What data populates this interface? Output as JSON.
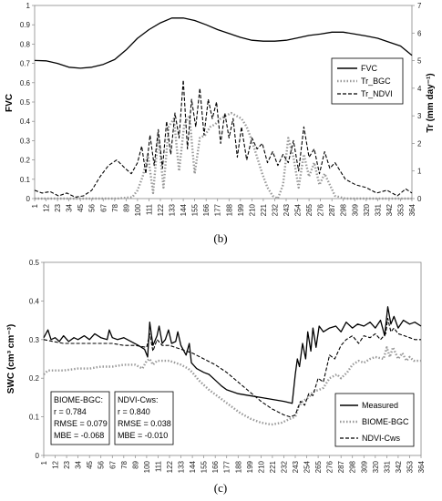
{
  "chart_data": [
    {
      "type": "line",
      "panel_label": "(b)",
      "ylabel_left": "FVC",
      "ylabel_right": "Tr (mm day⁻¹)",
      "ylim_left": [
        0,
        1
      ],
      "ylim_right": [
        0,
        7
      ],
      "yticks_left": [
        "0",
        "0.1",
        "0.2",
        "0.3",
        "0.4",
        "0.5",
        "0.6",
        "0.7",
        "0.8",
        "0.9",
        "1"
      ],
      "yticks_right": [
        "0",
        "1",
        "2",
        "3",
        "4",
        "5",
        "6",
        "7"
      ],
      "xticks": [
        "1",
        "12",
        "23",
        "34",
        "45",
        "56",
        "67",
        "78",
        "89",
        "100",
        "111",
        "122",
        "133",
        "144",
        "155",
        "166",
        "177",
        "188",
        "199",
        "210",
        "221",
        "232",
        "243",
        "254",
        "265",
        "276",
        "287",
        "298",
        "309",
        "320",
        "331",
        "342",
        "353",
        "364"
      ],
      "legend": [
        "FVC",
        "Tr_BGC",
        "Tr_NDVI"
      ],
      "legend_position": "right-middle",
      "series": [
        {
          "name": "FVC",
          "axis": "left",
          "style": "solid",
          "x": [
            1,
            12,
            23,
            34,
            45,
            56,
            67,
            78,
            89,
            100,
            111,
            122,
            133,
            144,
            155,
            166,
            177,
            188,
            199,
            210,
            221,
            232,
            243,
            254,
            265,
            276,
            287,
            298,
            309,
            320,
            331,
            342,
            353,
            364
          ],
          "y": [
            0.715,
            0.713,
            0.7,
            0.68,
            0.675,
            0.68,
            0.695,
            0.72,
            0.77,
            0.83,
            0.875,
            0.91,
            0.935,
            0.935,
            0.922,
            0.9,
            0.875,
            0.855,
            0.835,
            0.82,
            0.815,
            0.815,
            0.82,
            0.832,
            0.845,
            0.852,
            0.862,
            0.862,
            0.852,
            0.842,
            0.83,
            0.81,
            0.79,
            0.742
          ]
        },
        {
          "name": "Tr_BGC",
          "axis": "right",
          "style": "dotted",
          "x": [
            1,
            20,
            40,
            60,
            80,
            95,
            100,
            105,
            110,
            115,
            120,
            125,
            130,
            135,
            140,
            145,
            150,
            155,
            160,
            165,
            170,
            175,
            180,
            185,
            190,
            195,
            200,
            205,
            210,
            215,
            220,
            225,
            230,
            235,
            240,
            245,
            250,
            255,
            260,
            265,
            270,
            275,
            280,
            290,
            300,
            320,
            340,
            364
          ],
          "y": [
            0,
            0,
            0,
            0,
            0,
            0.05,
            0.3,
            0.8,
            1.6,
            0.2,
            2.3,
            0.4,
            2.6,
            2.9,
            1.0,
            2.7,
            3.0,
            0.9,
            2.2,
            2.3,
            2.6,
            2.7,
            2.9,
            3.0,
            3.1,
            3.0,
            2.9,
            2.6,
            2.1,
            1.5,
            0.9,
            0.4,
            0.1,
            0,
            0.5,
            2.2,
            1.5,
            0.4,
            1.6,
            0.8,
            1.3,
            0.5,
            0.9,
            0.1,
            0,
            0,
            0,
            0
          ]
        },
        {
          "name": "Tr_NDVI",
          "axis": "right",
          "style": "dashed",
          "x": [
            1,
            8,
            16,
            24,
            32,
            40,
            48,
            56,
            64,
            72,
            80,
            88,
            94,
            100,
            104,
            108,
            112,
            116,
            120,
            124,
            128,
            132,
            136,
            140,
            144,
            148,
            152,
            156,
            160,
            164,
            168,
            172,
            176,
            180,
            184,
            188,
            192,
            196,
            200,
            205,
            210,
            215,
            220,
            225,
            230,
            235,
            240,
            245,
            250,
            255,
            260,
            265,
            270,
            275,
            280,
            285,
            290,
            300,
            310,
            320,
            330,
            340,
            350,
            358,
            364
          ],
          "y": [
            0.3,
            0.2,
            0.25,
            0.1,
            0.2,
            0.05,
            0.1,
            0.3,
            0.8,
            1.2,
            1.4,
            1.1,
            0.9,
            1.3,
            1.9,
            0.9,
            2.3,
            1.2,
            2.5,
            1.1,
            2.8,
            1.6,
            3.1,
            2.2,
            4.3,
            1.8,
            3.6,
            2.6,
            4.0,
            2.3,
            3.6,
            2.9,
            3.5,
            2.0,
            3.1,
            2.2,
            2.9,
            1.5,
            2.6,
            1.4,
            2.2,
            1.8,
            2.0,
            1.3,
            1.7,
            1.2,
            1.6,
            1.3,
            2.1,
            1.0,
            2.6,
            1.5,
            1.8,
            0.9,
            1.7,
            1.1,
            1.3,
            0.7,
            0.5,
            0.4,
            0.2,
            0.3,
            0.1,
            0.35,
            0.2
          ]
        }
      ]
    },
    {
      "type": "line",
      "panel_label": "(c)",
      "ylabel": "SWC (cm³ cm⁻³)",
      "ylim": [
        0,
        0.5
      ],
      "yticks": [
        "0",
        "0.1",
        "0.2",
        "0.3",
        "0.4",
        "0.5"
      ],
      "xticks": [
        "1",
        "12",
        "23",
        "34",
        "45",
        "56",
        "67",
        "78",
        "89",
        "100",
        "111",
        "122",
        "133",
        "144",
        "155",
        "166",
        "177",
        "188",
        "199",
        "210",
        "221",
        "232",
        "243",
        "254",
        "265",
        "276",
        "287",
        "298",
        "309",
        "320",
        "331",
        "342",
        "353",
        "364"
      ],
      "legend": [
        "Measured",
        "BIOME-BGC",
        "NDVI-Cws"
      ],
      "legend_position": "bottom-right",
      "stats": [
        {
          "title": "BIOME-BGC:",
          "r": "r = 0.784",
          "rmse": "RMSE = 0.079",
          "mbe": "MBE = -0.068"
        },
        {
          "title": "NDVI-Cws:",
          "r": "r = 0.840",
          "rmse": "RMSE = 0.038",
          "mbe": "MBE = -0.010"
        }
      ],
      "series": [
        {
          "name": "Measured",
          "style": "solid",
          "x": [
            1,
            5,
            8,
            12,
            16,
            20,
            25,
            30,
            34,
            40,
            45,
            50,
            56,
            62,
            64,
            67,
            72,
            78,
            85,
            92,
            98,
            101,
            103,
            106,
            110,
            112,
            115,
            118,
            121,
            124,
            128,
            130,
            133,
            138,
            141,
            143,
            148,
            155,
            160,
            166,
            172,
            177,
            188,
            199,
            210,
            221,
            232,
            240,
            243,
            245,
            247,
            250,
            253,
            255,
            258,
            260,
            263,
            266,
            270,
            276,
            282,
            287,
            292,
            298,
            303,
            309,
            315,
            320,
            325,
            329,
            332,
            335,
            338,
            342,
            347,
            353,
            358,
            364
          ],
          "y": [
            0.305,
            0.325,
            0.3,
            0.305,
            0.295,
            0.31,
            0.295,
            0.305,
            0.3,
            0.31,
            0.3,
            0.315,
            0.305,
            0.3,
            0.325,
            0.305,
            0.3,
            0.305,
            0.295,
            0.285,
            0.275,
            0.255,
            0.345,
            0.285,
            0.31,
            0.335,
            0.29,
            0.3,
            0.325,
            0.29,
            0.295,
            0.32,
            0.285,
            0.26,
            0.29,
            0.24,
            0.225,
            0.215,
            0.21,
            0.195,
            0.18,
            0.17,
            0.16,
            0.155,
            0.15,
            0.145,
            0.14,
            0.135,
            0.21,
            0.25,
            0.23,
            0.29,
            0.25,
            0.32,
            0.27,
            0.33,
            0.28,
            0.335,
            0.32,
            0.33,
            0.335,
            0.32,
            0.345,
            0.33,
            0.34,
            0.335,
            0.345,
            0.33,
            0.35,
            0.31,
            0.385,
            0.34,
            0.36,
            0.33,
            0.35,
            0.34,
            0.345,
            0.335
          ]
        },
        {
          "name": "BIOME-BGC",
          "style": "dotted",
          "x": [
            1,
            5,
            10,
            20,
            34,
            45,
            56,
            67,
            78,
            89,
            96,
            100,
            103,
            106,
            110,
            115,
            122,
            133,
            140,
            144,
            150,
            160,
            170,
            180,
            190,
            200,
            210,
            220,
            230,
            238,
            243,
            246,
            250,
            256,
            260,
            266,
            270,
            276,
            283,
            287,
            293,
            298,
            304,
            309,
            315,
            320,
            328,
            331,
            334,
            337,
            342,
            346,
            350,
            353,
            357,
            364
          ],
          "y": [
            0.21,
            0.22,
            0.22,
            0.22,
            0.225,
            0.225,
            0.23,
            0.23,
            0.235,
            0.235,
            0.225,
            0.245,
            0.25,
            0.235,
            0.245,
            0.245,
            0.245,
            0.235,
            0.225,
            0.215,
            0.195,
            0.17,
            0.15,
            0.13,
            0.11,
            0.095,
            0.085,
            0.08,
            0.085,
            0.095,
            0.1,
            0.125,
            0.14,
            0.15,
            0.165,
            0.17,
            0.175,
            0.2,
            0.21,
            0.2,
            0.215,
            0.235,
            0.245,
            0.24,
            0.25,
            0.255,
            0.25,
            0.28,
            0.255,
            0.28,
            0.25,
            0.265,
            0.245,
            0.255,
            0.245,
            0.245
          ]
        },
        {
          "name": "NDVI-Cws",
          "style": "dashed",
          "x": [
            1,
            10,
            20,
            34,
            45,
            56,
            67,
            78,
            89,
            100,
            103,
            106,
            110,
            115,
            122,
            133,
            144,
            155,
            166,
            177,
            188,
            199,
            210,
            221,
            232,
            238,
            243,
            248,
            252,
            256,
            260,
            265,
            270,
            276,
            281,
            287,
            292,
            298,
            304,
            309,
            315,
            320,
            325,
            330,
            332,
            335,
            338,
            342,
            348,
            353,
            358,
            364
          ],
          "y": [
            0.3,
            0.295,
            0.29,
            0.29,
            0.29,
            0.29,
            0.29,
            0.285,
            0.285,
            0.28,
            0.315,
            0.27,
            0.3,
            0.285,
            0.285,
            0.275,
            0.265,
            0.25,
            0.235,
            0.215,
            0.19,
            0.165,
            0.14,
            0.12,
            0.105,
            0.1,
            0.105,
            0.14,
            0.13,
            0.16,
            0.155,
            0.2,
            0.19,
            0.26,
            0.25,
            0.285,
            0.3,
            0.31,
            0.29,
            0.31,
            0.305,
            0.315,
            0.3,
            0.315,
            0.355,
            0.32,
            0.33,
            0.315,
            0.31,
            0.305,
            0.3,
            0.3
          ]
        }
      ]
    }
  ]
}
